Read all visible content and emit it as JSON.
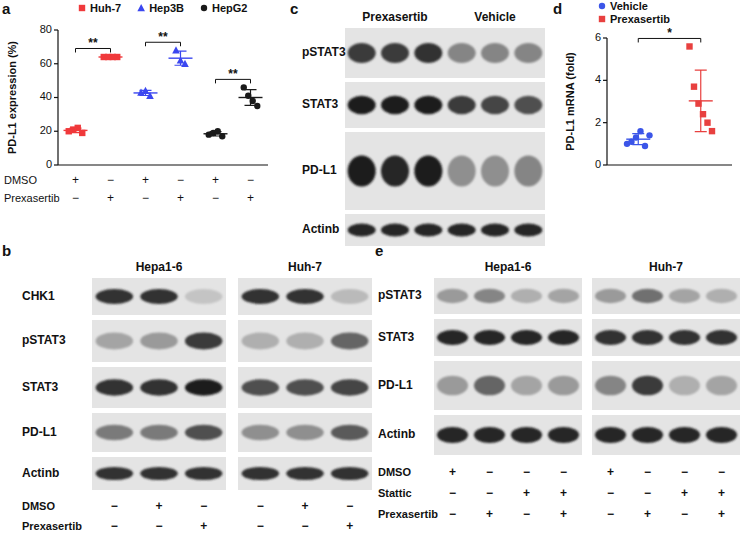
{
  "chart_data": [
    {
      "type": "dot_plot",
      "title": "a",
      "y_label": "PD-L1 expression (%)",
      "categories": [
        null,
        null,
        null,
        null,
        null,
        null
      ],
      "conditions": [
        {
          "label": "DMSO",
          "values": [
            "+",
            "−",
            "+",
            "−",
            "+",
            "−"
          ]
        },
        {
          "label": "Prexasertib",
          "values": [
            "−",
            "+",
            "−",
            "+",
            "−",
            "+"
          ]
        }
      ],
      "ylim": [
        0,
        80
      ],
      "yticks": [
        0,
        20,
        40,
        60,
        80
      ],
      "legend": "top",
      "series": [
        {
          "name": "Huh-7",
          "color": "#f0393b",
          "marker": "square",
          "values": [
            [
              20,
              21,
              22,
              19
            ],
            [
              64,
              64,
              64,
              64
            ],
            null,
            null,
            null,
            null
          ],
          "mean": [
            20.5,
            64,
            null,
            null,
            null,
            null
          ],
          "error": [
            1.3,
            0.3,
            null,
            null,
            null,
            null
          ]
        },
        {
          "name": "Hep3B",
          "color": "#3b47f0",
          "marker": "triangle",
          "values": [
            null,
            null,
            [
              43,
              44,
              41
            ],
            [
              68,
              62,
              60
            ],
            null,
            null
          ],
          "mean": [
            null,
            null,
            42.7,
            63.3,
            null,
            null
          ],
          "error": [
            null,
            null,
            1.5,
            4.2,
            null,
            null
          ]
        },
        {
          "name": "HepG2",
          "color": "#1a1a1a",
          "marker": "circle",
          "values": [
            null,
            null,
            null,
            null,
            [
              18,
              19,
              20,
              17
            ],
            [
              46,
              41,
              38,
              35
            ]
          ],
          "mean": [
            null,
            null,
            null,
            null,
            18.5,
            40
          ],
          "error": [
            null,
            null,
            null,
            null,
            1.3,
            4.7
          ]
        }
      ],
      "annotations": [
        {
          "text": "**",
          "categories": [
            0,
            1
          ]
        },
        {
          "text": "**",
          "categories": [
            2,
            3
          ]
        },
        {
          "text": "**",
          "categories": [
            4,
            5
          ]
        }
      ]
    },
    {
      "type": "dot_plot",
      "title": "d",
      "y_label": "PD-L1 mRNA (fold)",
      "categories": [
        null,
        null
      ],
      "ylim": [
        0,
        6
      ],
      "yticks": [
        0,
        2,
        4,
        6
      ],
      "legend": "top-left",
      "series": [
        {
          "name": "Vehicle",
          "color": "#3b55e8",
          "marker": "circle",
          "values": [
            [
              1.0,
              1.1,
              1.3,
              1.6,
              0.9,
              1.4
            ],
            null
          ],
          "mean": [
            1.22,
            null
          ],
          "error": [
            0.26,
            null
          ]
        },
        {
          "name": "Prexasertib",
          "color": "#e8403f",
          "marker": "square",
          "values": [
            null,
            [
              5.6,
              3.7,
              2.9,
              2.4,
              2.0,
              1.6
            ]
          ],
          "mean": [
            null,
            3.03
          ],
          "error": [
            null,
            1.45
          ]
        }
      ],
      "annotations": [
        {
          "text": "*",
          "categories": [
            0,
            1
          ]
        }
      ]
    }
  ],
  "blots": [
    {
      "title": "b",
      "groups": [
        "Hepa1-6",
        "Huh-7"
      ],
      "rows": [
        {
          "label": "CHK1",
          "bands": [
            0.85,
            0.85,
            0.15,
            0.85,
            0.85,
            0.2
          ]
        },
        {
          "label": "pSTAT3",
          "bands": [
            0.3,
            0.35,
            0.8,
            0.25,
            0.25,
            0.6
          ]
        },
        {
          "label": "STAT3",
          "bands": [
            0.85,
            0.85,
            0.95,
            0.7,
            0.7,
            0.75
          ]
        },
        {
          "label": "PD-L1",
          "bands": [
            0.5,
            0.5,
            0.7,
            0.4,
            0.4,
            0.65
          ]
        },
        {
          "label": "Actinb",
          "bands": [
            0.85,
            0.85,
            0.85,
            0.85,
            0.85,
            0.85
          ]
        }
      ],
      "conditions": [
        {
          "label": "DMSO",
          "values": [
            "−",
            "+",
            "−",
            "−",
            "+",
            "−"
          ]
        },
        {
          "label": "Prexasertib",
          "values": [
            "−",
            "−",
            "+",
            "−",
            "−",
            "+"
          ]
        }
      ]
    },
    {
      "title": "c",
      "groups": [
        "Prexasertib",
        "Vehicle"
      ],
      "rows": [
        {
          "label": "pSTAT3",
          "bands": [
            0.8,
            0.8,
            0.85,
            0.45,
            0.45,
            0.45
          ]
        },
        {
          "label": "STAT3",
          "bands": [
            0.95,
            0.95,
            0.95,
            0.8,
            0.75,
            0.7
          ]
        },
        {
          "label": "PD-L1",
          "bands": [
            0.95,
            0.9,
            0.95,
            0.4,
            0.4,
            0.45
          ]
        },
        {
          "label": "Actinb",
          "bands": [
            0.9,
            0.9,
            0.9,
            0.9,
            0.9,
            0.9
          ]
        }
      ]
    },
    {
      "title": "e",
      "groups": [
        "Hepa1-6",
        "Huh-7"
      ],
      "rows": [
        {
          "label": "pSTAT3",
          "bands": [
            0.35,
            0.45,
            0.25,
            0.3,
            0.35,
            0.55,
            0.3,
            0.25
          ]
        },
        {
          "label": "STAT3",
          "bands": [
            0.9,
            0.9,
            0.9,
            0.9,
            0.85,
            0.85,
            0.85,
            0.85
          ]
        },
        {
          "label": "PD-L1",
          "bands": [
            0.35,
            0.6,
            0.3,
            0.35,
            0.45,
            0.8,
            0.25,
            0.3
          ]
        },
        {
          "label": "Actinb",
          "bands": [
            0.9,
            0.9,
            0.9,
            0.9,
            0.9,
            0.9,
            0.9,
            0.9
          ]
        }
      ],
      "conditions": [
        {
          "label": "DMSO",
          "values": [
            "+",
            "−",
            "−",
            "−",
            "+",
            "−",
            "−",
            "−"
          ]
        },
        {
          "label": "Stattic",
          "values": [
            "−",
            "−",
            "+",
            "+",
            "−",
            "−",
            "+",
            "+"
          ]
        },
        {
          "label": "Prexasertib",
          "values": [
            "−",
            "+",
            "−",
            "+",
            "−",
            "+",
            "−",
            "+"
          ]
        }
      ]
    }
  ]
}
